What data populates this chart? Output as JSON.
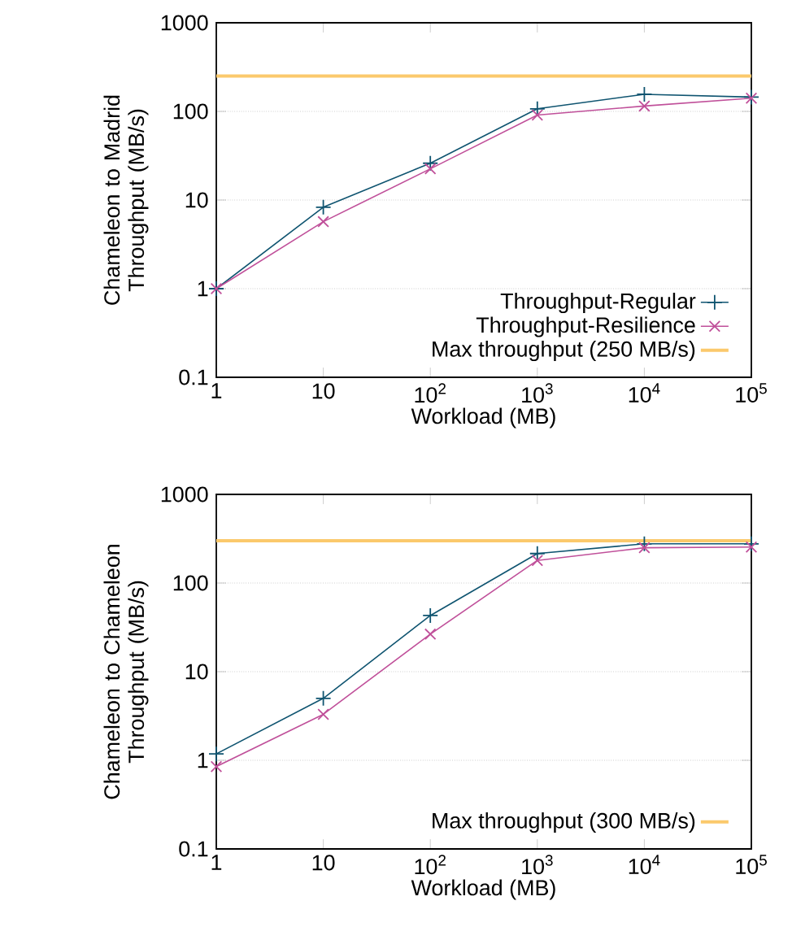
{
  "chart_data": [
    {
      "type": "line",
      "ylabel": "Chameleon to Madrid Throughput (MB/s)",
      "xlabel": "Workload (MB)",
      "x": [
        1,
        10,
        100,
        1000,
        10000,
        100000
      ],
      "series": [
        {
          "name": "Throughput-Regular",
          "color": "#0f5470",
          "marker": "plus",
          "values": [
            1,
            8.3,
            26,
            107,
            156,
            145
          ]
        },
        {
          "name": "Throughput-Resilience",
          "color": "#c0509a",
          "marker": "cross",
          "values": [
            1,
            5.7,
            22.5,
            91,
            115,
            141
          ]
        }
      ],
      "ref_lines": [
        {
          "axis": "y",
          "value": 250,
          "label": "Max throughput (250 MB/s)",
          "color": "#fbc96c"
        }
      ],
      "log": "xy",
      "grid": "y",
      "legend": "bottom right",
      "xlim": [
        1,
        100000
      ],
      "ylim": [
        0.1,
        1000
      ],
      "xticks": [
        1,
        10,
        {
          "value": 100,
          "label": "10$^{2}$"
        },
        {
          "value": 1000,
          "label": "10$^{3}$"
        },
        {
          "value": 10000,
          "label": "10$^{4}$"
        },
        {
          "value": 100000,
          "label": "10$^{5}$"
        }
      ],
      "yticks": [
        0.1,
        1,
        10,
        100,
        1000
      ]
    },
    {
      "type": "line",
      "ylabel": "Chameleon to Chameleon Throughput (MB/s)",
      "xlabel": "Workload (MB)",
      "x": [
        1,
        10,
        100,
        1000,
        10000,
        100000
      ],
      "series": [
        {
          "color": "#0f5470",
          "marker": "plus",
          "values": [
            1.18,
            5.0,
            43,
            215,
            277,
            277
          ]
        },
        {
          "color": "#c0509a",
          "marker": "cross",
          "values": [
            0.85,
            3.3,
            26.5,
            180,
            250,
            255
          ]
        }
      ],
      "ref_lines": [
        {
          "axis": "y",
          "value": 300,
          "label": "Max throughput (300 MB/s)",
          "color": "#fbc96c"
        }
      ],
      "log": "xy",
      "grid": "y",
      "legend": "bottom right",
      "xlim": [
        1,
        100000
      ],
      "ylim": [
        0.1,
        1000
      ],
      "xticks": [
        1,
        10,
        {
          "value": 100,
          "label": "10$^{2}$"
        },
        {
          "value": 1000,
          "label": "10$^{3}$"
        },
        {
          "value": 10000,
          "label": "10$^{4}$"
        },
        {
          "value": 100000,
          "label": "10$^{5}$"
        }
      ],
      "yticks": [
        0.1,
        1,
        10,
        100,
        1000
      ]
    }
  ]
}
